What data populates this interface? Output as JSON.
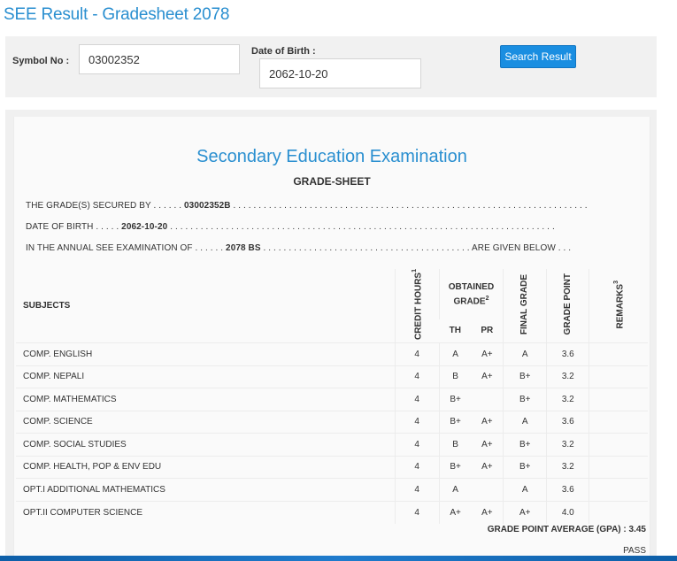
{
  "page": {
    "title": "SEE Result - Gradesheet 2078"
  },
  "form": {
    "symbol_label": "Symbol No :",
    "symbol_value": "03002352",
    "dob_label": "Date of Birth :",
    "dob_value": "2062-10-20",
    "search_button": "Search Result"
  },
  "sheet": {
    "exam_title": "Secondary Education Examination",
    "grade_sheet_title": "GRADE-SHEET",
    "line1_prefix": "THE GRADE(S) SECURED BY . . . . . . ",
    "line1_value": "03002352B",
    "line1_suffix": " . . . . . . . . . . . . . . . . . . . . . . . . . . . . . . . . . . . . . . . . . . . . . . . . . . . . . . . . . . . . . . . . . . . . . .",
    "line2_prefix": "DATE OF BIRTH . . . . . ",
    "line2_value": "2062-10-20",
    "line2_suffix": " . . . . . . . . . . . . . . . . . . . . . . . . . . . . . . . . . . . . . . . . . . . . . . . . . . . . . . . . . . . . . . . . . . . . . . . . . . . .",
    "line3_prefix": "IN THE ANNUAL SEE EXAMINATION OF . . . . . . ",
    "line3_value": "2078 BS",
    "line3_suffix": " . . . . . . . . . . . . . . . . . . . . . . . . . . . . . . . . . . . . . . . . . ARE GIVEN BELOW . . .",
    "headers": {
      "subjects": "SUBJECTS",
      "credit_hours": "CREDIT HOURS",
      "credit_sup": "1",
      "obtained_grade": "OBTAINED GRADE",
      "obtained_sup": "2",
      "th": "TH",
      "pr": "PR",
      "final_grade": "FINAL GRADE",
      "grade_point": "GRADE POINT",
      "remarks": "REMARKS",
      "remarks_sup": "3"
    },
    "rows": [
      {
        "subject": "COMP. ENGLISH",
        "credit": "4",
        "th": "A",
        "pr": "A+",
        "final": "A",
        "gp": "3.6",
        "remarks": ""
      },
      {
        "subject": "COMP. NEPALI",
        "credit": "4",
        "th": "B",
        "pr": "A+",
        "final": "B+",
        "gp": "3.2",
        "remarks": ""
      },
      {
        "subject": "COMP. MATHEMATICS",
        "credit": "4",
        "th": "B+",
        "pr": "",
        "final": "B+",
        "gp": "3.2",
        "remarks": ""
      },
      {
        "subject": "COMP. SCIENCE",
        "credit": "4",
        "th": "B+",
        "pr": "A+",
        "final": "A",
        "gp": "3.6",
        "remarks": ""
      },
      {
        "subject": "COMP. SOCIAL STUDIES",
        "credit": "4",
        "th": "B",
        "pr": "A+",
        "final": "B+",
        "gp": "3.2",
        "remarks": ""
      },
      {
        "subject": "COMP. HEALTH, POP & ENV EDU",
        "credit": "4",
        "th": "B+",
        "pr": "A+",
        "final": "B+",
        "gp": "3.2",
        "remarks": ""
      },
      {
        "subject": "OPT.I ADDITIONAL MATHEMATICS",
        "credit": "4",
        "th": "A",
        "pr": "",
        "final": "A",
        "gp": "3.6",
        "remarks": ""
      },
      {
        "subject": "OPT.II COMPUTER SCIENCE",
        "credit": "4",
        "th": "A+",
        "pr": "A+",
        "final": "A+",
        "gp": "4.0",
        "remarks": ""
      }
    ],
    "gpa_text": "GRADE POINT AVERAGE (GPA) : 3.45",
    "result_text": "PASS"
  },
  "colors": {
    "accent": "#2a8fd0",
    "button": "#1a8ee1"
  }
}
